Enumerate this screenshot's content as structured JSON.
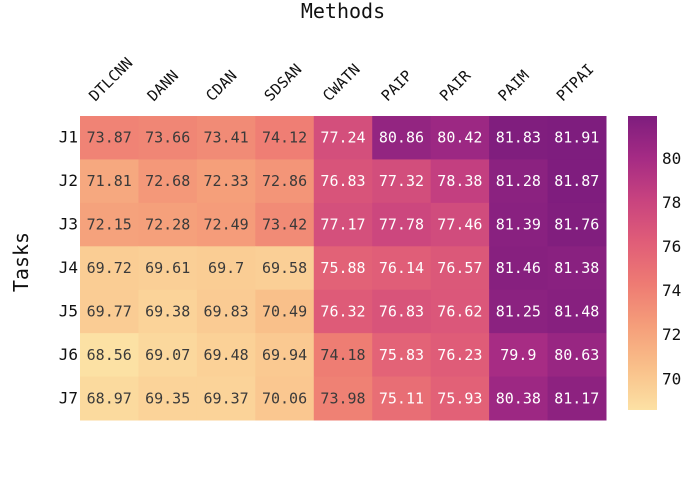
{
  "chart_data": {
    "type": "heatmap",
    "xlabel": "Methods",
    "ylabel": "Tasks",
    "columns": [
      "DTLCNN",
      "DANN",
      "CDAN",
      "SDSAN",
      "CWATN",
      "PAIP",
      "PAIR",
      "PAIM",
      "PTPAI"
    ],
    "rows": [
      "J1",
      "J2",
      "J3",
      "J4",
      "J5",
      "J6",
      "J7"
    ],
    "values": [
      [
        73.87,
        73.66,
        73.41,
        74.12,
        77.24,
        80.86,
        80.42,
        81.83,
        81.91
      ],
      [
        71.81,
        72.68,
        72.33,
        72.86,
        76.83,
        77.32,
        78.38,
        81.28,
        81.87
      ],
      [
        72.15,
        72.28,
        72.49,
        73.42,
        77.17,
        77.78,
        77.46,
        81.39,
        81.76
      ],
      [
        69.72,
        69.61,
        69.7,
        69.58,
        75.88,
        76.14,
        76.57,
        81.46,
        81.38
      ],
      [
        69.77,
        69.38,
        69.83,
        70.49,
        76.32,
        76.83,
        76.62,
        81.25,
        81.48
      ],
      [
        68.56,
        69.07,
        69.48,
        69.94,
        74.18,
        75.83,
        76.23,
        79.9,
        80.63
      ],
      [
        68.97,
        69.35,
        69.37,
        70.06,
        73.98,
        75.11,
        75.93,
        80.38,
        81.17
      ]
    ],
    "colorscale": {
      "name": "sunset-like",
      "min": 68.56,
      "max": 81.91,
      "stops": [
        "#fce1a4",
        "#f9c08a",
        "#f59e7a",
        "#ee7b73",
        "#e05d78",
        "#c8437f",
        "#a52b84",
        "#7e1d7e"
      ]
    },
    "colorbar_ticks": [
      70,
      72,
      74,
      76,
      78,
      80
    ]
  }
}
